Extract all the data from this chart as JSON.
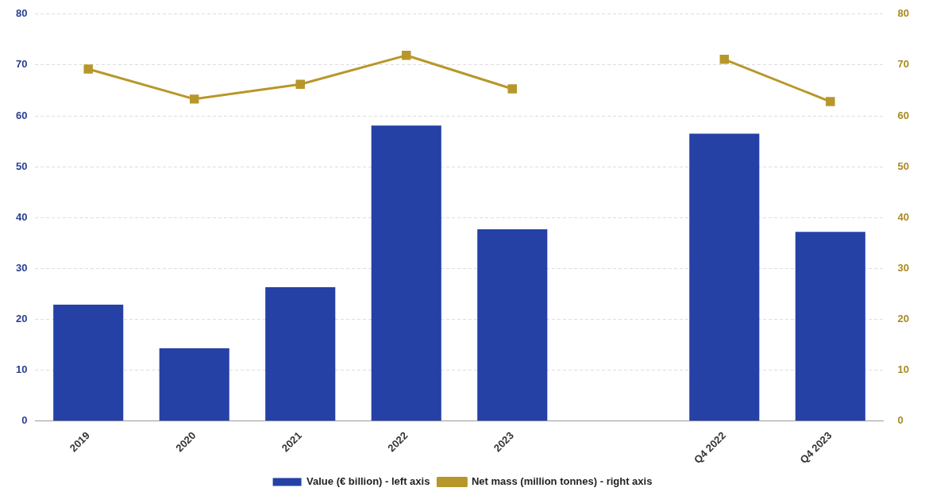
{
  "chart_data": {
    "type": "bar",
    "categories": [
      "2019",
      "2020",
      "2021",
      "2022",
      "2023",
      null,
      "Q4 2022",
      "Q4 2023"
    ],
    "series": [
      {
        "name": "Value (€ billion) - left axis",
        "color": "#2541a6",
        "values": [
          22.9,
          14.3,
          26.3,
          58.1,
          37.7,
          null,
          56.5,
          37.2
        ]
      },
      {
        "name": "Net mass (million tonnes) - right axis",
        "type": "line",
        "axis": "y2",
        "color": "#b8972a",
        "marker": "square",
        "values": [
          69.2,
          63.3,
          66.2,
          71.9,
          65.3,
          null,
          71.1,
          62.8
        ]
      }
    ],
    "ylim": [
      0,
      80
    ],
    "yticks": [
      0,
      10,
      20,
      30,
      40,
      50,
      60,
      70,
      80
    ],
    "y2lim": [
      0,
      80
    ],
    "y2ticks": [
      0,
      10,
      20,
      30,
      40,
      50,
      60,
      70,
      80
    ],
    "grid": "y",
    "legend": "bottom"
  }
}
